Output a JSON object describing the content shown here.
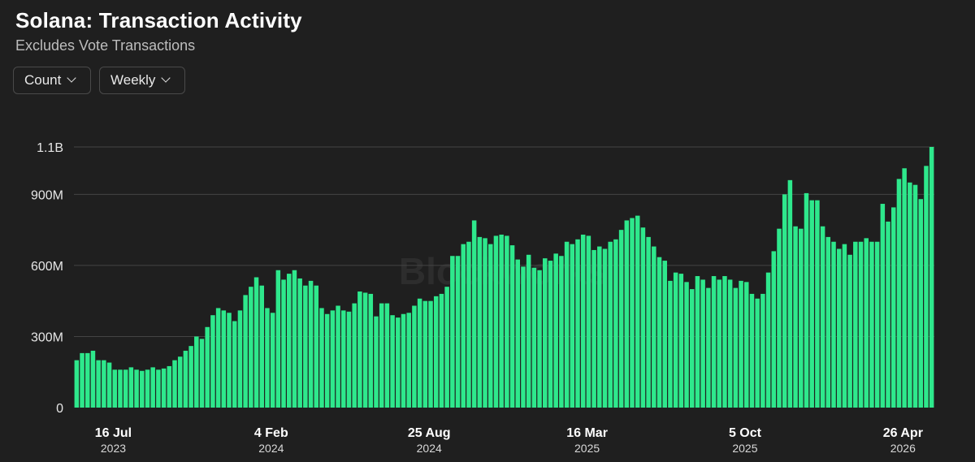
{
  "header": {
    "title": "Solana: Transaction Activity",
    "subtitle": "Excludes Vote Transactions"
  },
  "controls": {
    "metric_label": "Count",
    "interval_label": "Weekly"
  },
  "watermark": "Blockworks",
  "colors": {
    "bar": "#2ee88c",
    "background": "#1f1f1f",
    "grid": "#444444"
  },
  "chart_data": {
    "type": "bar",
    "ylim": [
      0,
      1100000000
    ],
    "yticks": [
      {
        "value": 0,
        "label": "0"
      },
      {
        "value": 300000000,
        "label": "300M"
      },
      {
        "value": 600000000,
        "label": "600M"
      },
      {
        "value": 900000000,
        "label": "900M"
      },
      {
        "value": 1100000000,
        "label": "1.1B"
      }
    ],
    "xticks": [
      {
        "index": 3,
        "label": "16 Jul",
        "sublabel": "2023"
      },
      {
        "index": 32,
        "label": "4 Feb",
        "sublabel": "2024"
      },
      {
        "index": 61,
        "label": "25 Aug",
        "sublabel": "2024"
      },
      {
        "index": 90,
        "label": "16 Mar",
        "sublabel": "2025"
      },
      {
        "index": 119,
        "label": "5 Oct",
        "sublabel": "2025"
      },
      {
        "index": 148,
        "label": "26 Apr",
        "sublabel": "2026"
      }
    ],
    "grid": true,
    "legend": "none",
    "values_millions": [
      200,
      230,
      230,
      240,
      200,
      200,
      190,
      160,
      160,
      160,
      170,
      160,
      155,
      160,
      170,
      160,
      165,
      175,
      200,
      215,
      240,
      260,
      300,
      290,
      340,
      390,
      420,
      410,
      400,
      365,
      410,
      475,
      510,
      550,
      515,
      420,
      400,
      580,
      540,
      565,
      580,
      545,
      515,
      535,
      515,
      420,
      395,
      410,
      430,
      410,
      405,
      440,
      490,
      485,
      480,
      385,
      440,
      440,
      390,
      380,
      395,
      400,
      430,
      460,
      450,
      450,
      470,
      480,
      510,
      640,
      640,
      690,
      700,
      790,
      720,
      715,
      690,
      725,
      730,
      725,
      685,
      625,
      595,
      645,
      590,
      580,
      630,
      620,
      650,
      640,
      700,
      690,
      710,
      730,
      725,
      665,
      680,
      670,
      700,
      710,
      750,
      790,
      800,
      810,
      760,
      720,
      680,
      635,
      620,
      535,
      570,
      565,
      530,
      500,
      555,
      540,
      505,
      555,
      540,
      555,
      540,
      505,
      535,
      530,
      480,
      460,
      480,
      570,
      660,
      755,
      900,
      960,
      765,
      755,
      905,
      875,
      875,
      765,
      720,
      700,
      670,
      690,
      645,
      700,
      700,
      715,
      700,
      700,
      860,
      785,
      845,
      965,
      1010,
      950,
      940,
      880,
      1020,
      1100
    ]
  }
}
